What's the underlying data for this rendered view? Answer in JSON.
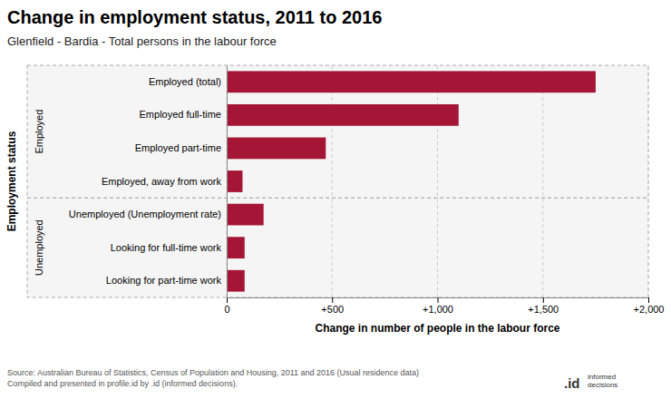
{
  "chart_data": {
    "type": "bar",
    "orientation": "horizontal",
    "title": "Change in employment status, 2011 to 2016",
    "subtitle": "Glenfield - Bardia - Total persons in the labour force",
    "xlabel": "Change in number of people in the labour force",
    "ylabel": "Employment status",
    "categories": [
      "Looking for part-time work",
      "Looking for full-time work",
      "Unemployed (Unemployment rate)",
      "Employed, away from work",
      "Employed part-time",
      "Employed full-time",
      "Employed (total)"
    ],
    "values": [
      85,
      85,
      175,
      75,
      470,
      1100,
      1750
    ],
    "color": "#a51535",
    "xlim": [
      0,
      2000
    ],
    "xticks": [
      0,
      {
        "value": 500,
        "label": "+500"
      },
      {
        "value": 1000,
        "label": "+1,000"
      },
      {
        "value": 1500,
        "label": "+1,500"
      },
      {
        "value": 2000,
        "label": "+2,000"
      }
    ],
    "grid": true,
    "groups": [
      {
        "label": "Employed",
        "categories": [
          "Employed, away from work",
          "Employed part-time",
          "Employed full-time",
          "Employed (total)"
        ]
      },
      {
        "label": "Unemployed",
        "categories": [
          "Looking for part-time work",
          "Looking for full-time work",
          "Unemployed (Unemployment rate)"
        ]
      }
    ],
    "source": "Source: Australian Bureau of Statistics, Census of Population and Housing, 2011 and 2016 (Usual residence data)\nCompiled and presented in profile.id by .id (informed decisions).",
    "annotations": [
      {
        "text": ".id"
      },
      {
        "text": "informed\ndecisions"
      }
    ]
  }
}
